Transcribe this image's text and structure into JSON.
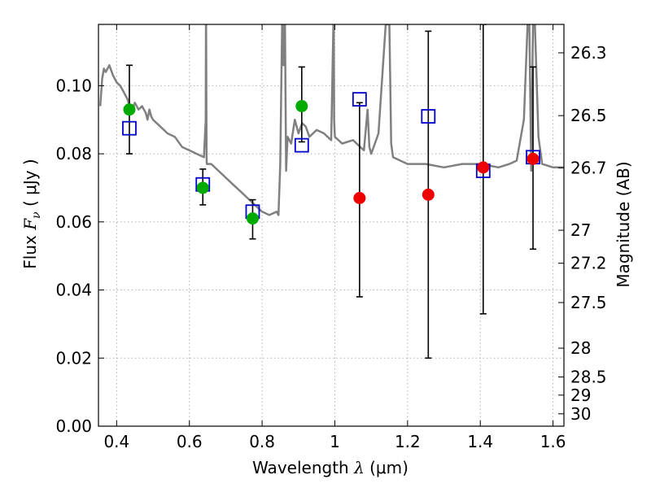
{
  "chart_data": {
    "type": "scatter",
    "xlabel": {
      "prefix": "Wavelength  ",
      "symbol": "λ",
      "unit": " (μm)"
    },
    "ylabel": {
      "prefix": "Flux  ",
      "symbol": "F",
      "subscript": "ν",
      "unit": "  ( μJy )"
    },
    "y2label": "Magnitude (AB)",
    "xlim": [
      0.35,
      1.63
    ],
    "ylim": [
      0.0,
      0.118
    ],
    "grid": true,
    "legend": "none",
    "x_ticks": [
      {
        "value": 0.4,
        "label": "0.4"
      },
      {
        "value": 0.6,
        "label": "0.6"
      },
      {
        "value": 0.8,
        "label": "0.8"
      },
      {
        "value": 1.0,
        "label": "1"
      },
      {
        "value": 1.2,
        "label": "1.2"
      },
      {
        "value": 1.4,
        "label": "1.4"
      },
      {
        "value": 1.6,
        "label": "1.6"
      }
    ],
    "y_ticks": [
      {
        "value": 0.0,
        "label": "0.00"
      },
      {
        "value": 0.02,
        "label": "0.02"
      },
      {
        "value": 0.04,
        "label": "0.04"
      },
      {
        "value": 0.06,
        "label": "0.06"
      },
      {
        "value": 0.08,
        "label": "0.08"
      },
      {
        "value": 0.1,
        "label": "0.10"
      }
    ],
    "y2_ticks": [
      {
        "mag": 26.3,
        "label": "26.3"
      },
      {
        "mag": 26.5,
        "label": "26.5"
      },
      {
        "mag": 26.7,
        "label": "26.7"
      },
      {
        "mag": 27.0,
        "label": "27"
      },
      {
        "mag": 27.2,
        "label": "27.2"
      },
      {
        "mag": 27.5,
        "label": "27.5"
      },
      {
        "mag": 28.0,
        "label": "28"
      },
      {
        "mag": 28.5,
        "label": "28.5"
      },
      {
        "mag": 29.0,
        "label": "29"
      },
      {
        "mag": 30.0,
        "label": "30"
      }
    ],
    "series": [
      {
        "kind": "model-spectrum",
        "color": "#808080",
        "x": [
          0.355,
          0.36,
          0.365,
          0.37,
          0.38,
          0.39,
          0.4,
          0.41,
          0.42,
          0.43,
          0.44,
          0.45,
          0.46,
          0.47,
          0.48,
          0.485,
          0.49,
          0.495,
          0.5,
          0.52,
          0.54,
          0.56,
          0.58,
          0.6,
          0.62,
          0.64,
          0.645,
          0.6455,
          0.646,
          0.647,
          0.6475,
          0.648,
          0.66,
          0.68,
          0.7,
          0.72,
          0.74,
          0.76,
          0.78,
          0.8,
          0.82,
          0.84,
          0.845,
          0.85,
          0.855,
          0.857,
          0.859,
          0.861,
          0.863,
          0.866,
          0.87,
          0.88,
          0.89,
          0.9,
          0.91,
          0.92,
          0.93,
          0.95,
          0.97,
          0.99,
          0.996,
          0.997,
          0.998,
          1.0,
          1.02,
          1.05,
          1.08,
          1.09,
          1.095,
          1.1,
          1.12,
          1.14,
          1.15,
          1.155,
          1.16,
          1.18,
          1.2,
          1.25,
          1.3,
          1.35,
          1.4,
          1.45,
          1.48,
          1.5,
          1.52,
          1.53,
          1.535,
          1.54,
          1.545,
          1.55,
          1.56,
          1.57,
          1.6,
          1.63
        ],
        "y": [
          0.094,
          0.102,
          0.105,
          0.104,
          0.106,
          0.103,
          0.101,
          0.1,
          0.098,
          0.096,
          0.092,
          0.095,
          0.093,
          0.094,
          0.092,
          0.09,
          0.093,
          0.091,
          0.09,
          0.088,
          0.086,
          0.085,
          0.082,
          0.081,
          0.08,
          0.079,
          0.09,
          0.118,
          0.118,
          0.09,
          0.078,
          0.077,
          0.077,
          0.075,
          0.073,
          0.071,
          0.069,
          0.067,
          0.065,
          0.063,
          0.062,
          0.063,
          0.062,
          0.077,
          0.118,
          0.118,
          0.106,
          0.118,
          0.118,
          0.075,
          0.085,
          0.083,
          0.09,
          0.086,
          0.089,
          0.088,
          0.085,
          0.087,
          0.086,
          0.084,
          0.118,
          0.118,
          0.09,
          0.085,
          0.083,
          0.084,
          0.081,
          0.093,
          0.082,
          0.08,
          0.086,
          0.118,
          0.118,
          0.083,
          0.079,
          0.078,
          0.077,
          0.077,
          0.076,
          0.077,
          0.077,
          0.076,
          0.077,
          0.078,
          0.09,
          0.118,
          0.118,
          0.075,
          0.118,
          0.118,
          0.085,
          0.077,
          0.076,
          0.076
        ]
      },
      {
        "kind": "observed",
        "color": "#00aa00",
        "x": [
          0.435,
          0.637,
          0.774,
          0.909
        ],
        "y": [
          0.093,
          0.07,
          0.061,
          0.094
        ]
      },
      {
        "kind": "observed-upper",
        "color": "#ee0000",
        "x": [
          1.068,
          1.257,
          1.408,
          1.545
        ],
        "y": [
          0.067,
          0.068,
          0.076,
          0.0785
        ]
      },
      {
        "kind": "model-band",
        "color": "#0000cc",
        "x": [
          0.435,
          0.637,
          0.774,
          0.909,
          1.068,
          1.257,
          1.408,
          1.545
        ],
        "y": [
          0.0875,
          0.071,
          0.063,
          0.0825,
          0.096,
          0.091,
          0.075,
          0.079
        ]
      }
    ],
    "error_bars": [
      {
        "x": 0.435,
        "low": 0.08,
        "high": 0.106
      },
      {
        "x": 0.637,
        "low": 0.065,
        "high": 0.0755
      },
      {
        "x": 0.774,
        "low": 0.055,
        "high": 0.0665
      },
      {
        "x": 0.909,
        "low": 0.0835,
        "high": 0.1055
      },
      {
        "x": 1.068,
        "low": 0.038,
        "high": 0.095
      },
      {
        "x": 1.257,
        "low": 0.02,
        "high": 0.116
      },
      {
        "x": 1.408,
        "low": 0.033,
        "high": 0.118
      },
      {
        "x": 1.545,
        "low": 0.052,
        "high": 0.1055
      }
    ]
  }
}
